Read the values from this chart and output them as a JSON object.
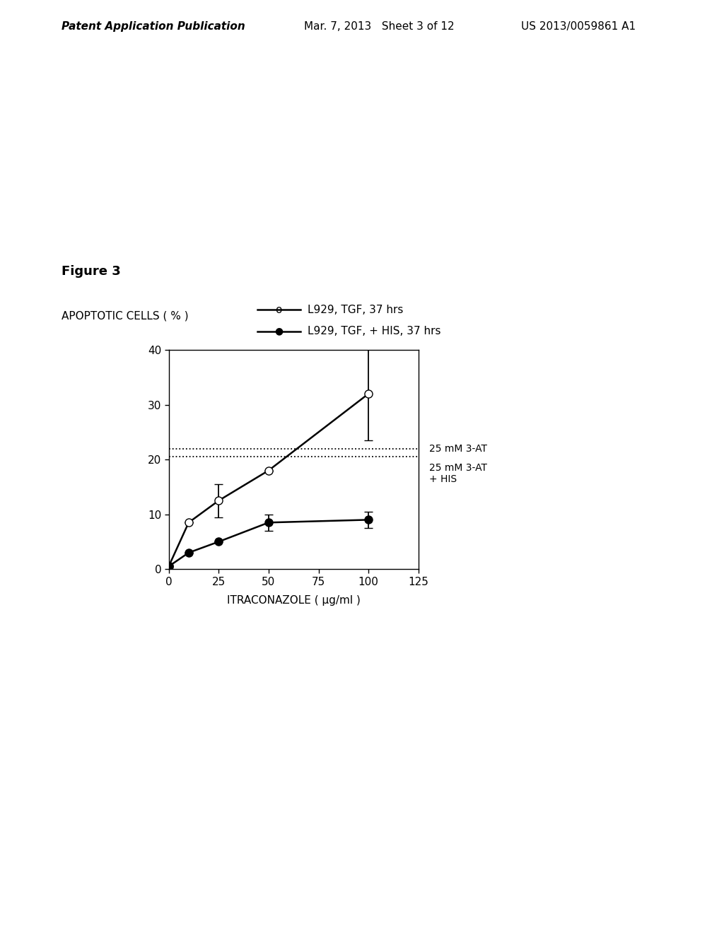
{
  "figure_label": "Figure 3",
  "ylabel": "APOPTOTIC CELLS ( % )",
  "xlabel": "ITRACONAZOLE ( μg/ml )",
  "xlim": [
    0,
    125
  ],
  "ylim": [
    0,
    40
  ],
  "xticks": [
    0,
    25,
    50,
    75,
    100,
    125
  ],
  "yticks": [
    0,
    10,
    20,
    30,
    40
  ],
  "series1_label": "L929, TGF, 37 hrs",
  "series1_x": [
    0,
    10,
    25,
    50,
    100
  ],
  "series1_y": [
    0.5,
    8.5,
    12.5,
    18.0,
    32.0
  ],
  "series1_yerr": [
    0.5,
    0.0,
    3.0,
    0.0,
    8.5
  ],
  "series1_color": "#000000",
  "series1_markerfacecolor": "white",
  "series2_label": "L929, TGF, + HIS, 37 hrs",
  "series2_x": [
    0,
    10,
    25,
    50,
    100
  ],
  "series2_y": [
    0.5,
    3.0,
    5.0,
    8.5,
    9.0
  ],
  "series2_yerr": [
    0.5,
    0.0,
    0.0,
    1.5,
    1.5
  ],
  "series2_color": "#000000",
  "series2_markerfacecolor": "#000000",
  "hline1_y": 22.0,
  "hline1_label": "25 mM 3-AT",
  "hline2_y": 20.5,
  "hline2_label": "25 mM 3-AT\n+ HIS",
  "background_color": "#ffffff",
  "header_left": "Patent Application Publication",
  "header_mid": "Mar. 7, 2013   Sheet 3 of 12",
  "header_right": "US 2013/0059861 A1"
}
